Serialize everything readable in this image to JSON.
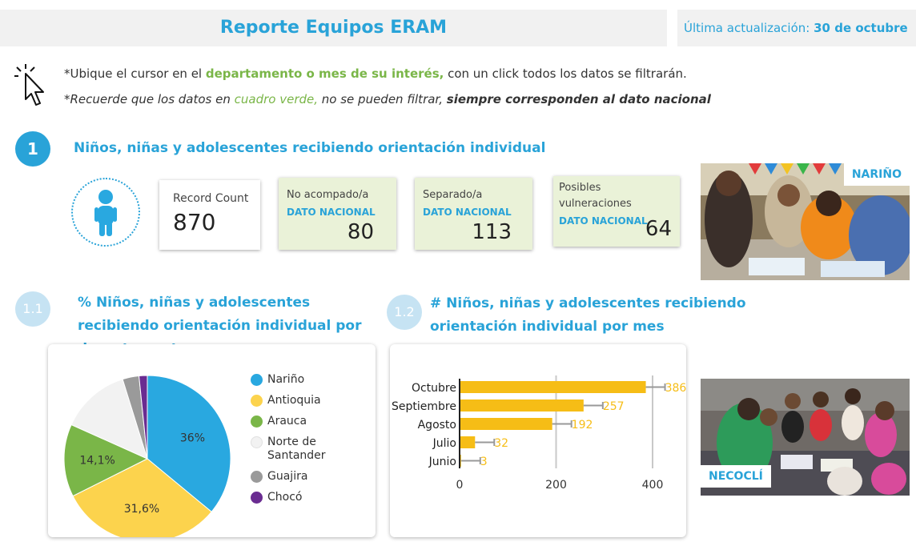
{
  "header": {
    "title": "Reporte Equipos ERAM",
    "update_label": "Última actualización:",
    "update_date": "30 de octubre"
  },
  "instructions": {
    "line1_a": "*Ubique el cursor en el ",
    "line1_b": "departamento o mes de su interés,",
    "line1_c": " con un click todos los datos se filtrarán.",
    "line2_a": "*Recuerde que los datos en ",
    "line2_b": "cuadro verde,",
    "line2_c": " no se pueden filtrar, ",
    "line2_d": "siempre corresponden al dato nacional"
  },
  "section1": {
    "number": "1",
    "title": "Niños, niñas y adolescentes recibiendo orientación individual",
    "cards": [
      {
        "label": "Record Count",
        "value": "870"
      },
      {
        "label": "No acompado/a",
        "national": "DATO NACIONAL",
        "value": "80"
      },
      {
        "label": "Separado/a",
        "national": "DATO NACIONAL",
        "value": "113"
      },
      {
        "label_l1": "Posibles",
        "label_l2": "vulneraciones",
        "national": "DATO NACIONAL",
        "value": "64"
      }
    ]
  },
  "section11": {
    "number": "1.1",
    "title": "% Niños, niñas y adolescentes recibiendo orientación individual por departamento"
  },
  "section12": {
    "number": "1.2",
    "title": "# Niños, niñas y adolescentes recibiendo orientación individual por mes"
  },
  "photos": {
    "photo1_label": "NARIÑO",
    "photo2_label": "NECOCLÍ"
  },
  "colors": {
    "accent": "#29a3d8",
    "green": "#7ab648",
    "green_card": "#eaf2d8",
    "bar": "#f6bd16"
  },
  "chart_data": [
    {
      "type": "pie",
      "categories": [
        "Nariño",
        "Antioquia",
        "Arauca",
        "Norte de Santander",
        "Guajira",
        "Chocó"
      ],
      "values": [
        36.0,
        31.6,
        14.1,
        13.5,
        3.2,
        1.6
      ],
      "data_labels": [
        "36%",
        "31,6%",
        "14,1%",
        "",
        "",
        ""
      ],
      "colors": [
        "#29a8e0",
        "#fcd34d",
        "#7ab648",
        "#f2f2f2",
        "#9a9a9a",
        "#6a2c91"
      ],
      "legend_position": "right",
      "legend_labels": [
        [
          "Nariño"
        ],
        [
          "Antioquia"
        ],
        [
          "Arauca"
        ],
        [
          "Norte de",
          "Santander"
        ],
        [
          "Guajira"
        ],
        [
          "Chocó"
        ]
      ]
    },
    {
      "type": "bar",
      "orientation": "horizontal",
      "categories": [
        "Octubre",
        "Septiembre",
        "Agosto",
        "Julio",
        "Junio"
      ],
      "values": [
        386,
        257,
        192,
        32,
        3
      ],
      "value_labels": [
        "386",
        "257",
        "192",
        "32",
        "3"
      ],
      "xlim": [
        0,
        450
      ],
      "xticks": [
        0,
        200,
        400
      ],
      "grid": true,
      "color": "#f6bd16"
    }
  ]
}
